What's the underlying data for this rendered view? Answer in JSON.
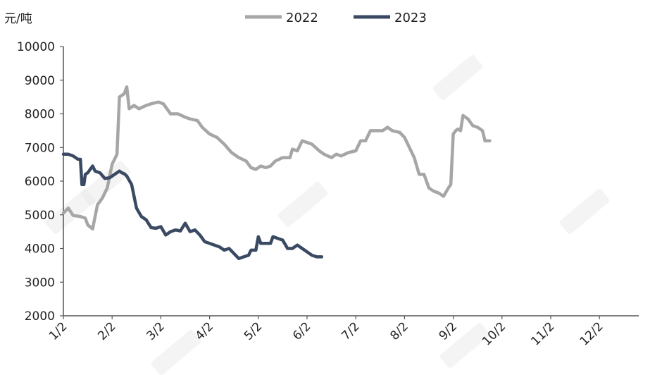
{
  "chart_data": {
    "type": "line",
    "unit_label": "元/吨",
    "ylim": [
      2000,
      10000
    ],
    "y_ticks": [
      "10000",
      "9000",
      "8000",
      "7000",
      "6000",
      "5000",
      "4000",
      "3000",
      "2000"
    ],
    "x_ticks": [
      "1/2",
      "2/2",
      "3/2",
      "4/2",
      "5/2",
      "6/2",
      "7/2",
      "8/2",
      "9/2",
      "10/2",
      "11/2",
      "12/2"
    ],
    "grid": false,
    "legend": "top-center",
    "series": [
      {
        "name": "2022",
        "color": "#a6a6a6",
        "points": [
          [
            0,
            5050
          ],
          [
            0.1,
            5200
          ],
          [
            0.2,
            4980
          ],
          [
            0.35,
            4950
          ],
          [
            0.45,
            4900
          ],
          [
            0.5,
            4700
          ],
          [
            0.6,
            4580
          ],
          [
            0.7,
            5300
          ],
          [
            0.8,
            5500
          ],
          [
            0.9,
            5800
          ],
          [
            1.0,
            6500
          ],
          [
            1.1,
            6800
          ],
          [
            1.15,
            8500
          ],
          [
            1.25,
            8600
          ],
          [
            1.3,
            8800
          ],
          [
            1.35,
            8150
          ],
          [
            1.45,
            8250
          ],
          [
            1.55,
            8150
          ],
          [
            1.7,
            8250
          ],
          [
            1.8,
            8300
          ],
          [
            1.95,
            8350
          ],
          [
            2.05,
            8300
          ],
          [
            2.2,
            8000
          ],
          [
            2.35,
            8000
          ],
          [
            2.5,
            7900
          ],
          [
            2.6,
            7850
          ],
          [
            2.75,
            7800
          ],
          [
            2.85,
            7600
          ],
          [
            3.0,
            7400
          ],
          [
            3.15,
            7300
          ],
          [
            3.3,
            7100
          ],
          [
            3.45,
            6850
          ],
          [
            3.6,
            6700
          ],
          [
            3.75,
            6600
          ],
          [
            3.85,
            6400
          ],
          [
            3.95,
            6350
          ],
          [
            4.05,
            6450
          ],
          [
            4.15,
            6400
          ],
          [
            4.25,
            6450
          ],
          [
            4.35,
            6600
          ],
          [
            4.5,
            6700
          ],
          [
            4.65,
            6700
          ],
          [
            4.7,
            6950
          ],
          [
            4.8,
            6900
          ],
          [
            4.9,
            7200
          ],
          [
            5.0,
            7150
          ],
          [
            5.1,
            7100
          ],
          [
            5.25,
            6900
          ],
          [
            5.35,
            6800
          ],
          [
            5.5,
            6700
          ],
          [
            5.6,
            6800
          ],
          [
            5.7,
            6750
          ],
          [
            5.85,
            6850
          ],
          [
            6.0,
            6900
          ],
          [
            6.1,
            7200
          ],
          [
            6.2,
            7200
          ],
          [
            6.3,
            7500
          ],
          [
            6.45,
            7500
          ],
          [
            6.55,
            7500
          ],
          [
            6.65,
            7600
          ],
          [
            6.75,
            7500
          ],
          [
            6.9,
            7450
          ],
          [
            7.0,
            7300
          ],
          [
            7.1,
            7000
          ],
          [
            7.2,
            6700
          ],
          [
            7.3,
            6200
          ],
          [
            7.4,
            6200
          ],
          [
            7.5,
            5800
          ],
          [
            7.6,
            5700
          ],
          [
            7.7,
            5650
          ],
          [
            7.8,
            5550
          ],
          [
            7.9,
            5800
          ],
          [
            7.95,
            5900
          ],
          [
            8.0,
            7400
          ],
          [
            8.05,
            7500
          ],
          [
            8.1,
            7550
          ],
          [
            8.15,
            7500
          ],
          [
            8.2,
            7950
          ],
          [
            8.3,
            7850
          ],
          [
            8.4,
            7650
          ],
          [
            8.5,
            7600
          ],
          [
            8.6,
            7500
          ],
          [
            8.65,
            7200
          ],
          [
            8.75,
            7200
          ]
        ]
      },
      {
        "name": "2023",
        "color": "#3a4a63",
        "points": [
          [
            0,
            6800
          ],
          [
            0.1,
            6800
          ],
          [
            0.2,
            6750
          ],
          [
            0.3,
            6650
          ],
          [
            0.35,
            6650
          ],
          [
            0.38,
            5900
          ],
          [
            0.42,
            5900
          ],
          [
            0.45,
            6200
          ],
          [
            0.5,
            6250
          ],
          [
            0.55,
            6350
          ],
          [
            0.6,
            6450
          ],
          [
            0.65,
            6300
          ],
          [
            0.75,
            6250
          ],
          [
            0.85,
            6080
          ],
          [
            0.95,
            6100
          ],
          [
            1.05,
            6200
          ],
          [
            1.15,
            6300
          ],
          [
            1.2,
            6250
          ],
          [
            1.25,
            6220
          ],
          [
            1.3,
            6150
          ],
          [
            1.4,
            5900
          ],
          [
            1.5,
            5200
          ],
          [
            1.6,
            4950
          ],
          [
            1.7,
            4850
          ],
          [
            1.8,
            4620
          ],
          [
            1.9,
            4600
          ],
          [
            2.0,
            4650
          ],
          [
            2.1,
            4400
          ],
          [
            2.2,
            4500
          ],
          [
            2.3,
            4550
          ],
          [
            2.4,
            4520
          ],
          [
            2.5,
            4750
          ],
          [
            2.6,
            4500
          ],
          [
            2.7,
            4550
          ],
          [
            2.8,
            4400
          ],
          [
            2.9,
            4200
          ],
          [
            3.0,
            4150
          ],
          [
            3.1,
            4100
          ],
          [
            3.2,
            4050
          ],
          [
            3.3,
            3950
          ],
          [
            3.4,
            4000
          ],
          [
            3.5,
            3850
          ],
          [
            3.6,
            3700
          ],
          [
            3.7,
            3750
          ],
          [
            3.8,
            3800
          ],
          [
            3.85,
            3950
          ],
          [
            3.95,
            3950
          ],
          [
            4.0,
            4350
          ],
          [
            4.05,
            4150
          ],
          [
            4.15,
            4150
          ],
          [
            4.25,
            4150
          ],
          [
            4.3,
            4350
          ],
          [
            4.4,
            4300
          ],
          [
            4.5,
            4250
          ],
          [
            4.6,
            4000
          ],
          [
            4.7,
            4000
          ],
          [
            4.8,
            4100
          ],
          [
            4.9,
            4000
          ],
          [
            5.0,
            3900
          ],
          [
            5.1,
            3800
          ],
          [
            5.2,
            3750
          ],
          [
            5.3,
            3750
          ]
        ]
      }
    ]
  }
}
